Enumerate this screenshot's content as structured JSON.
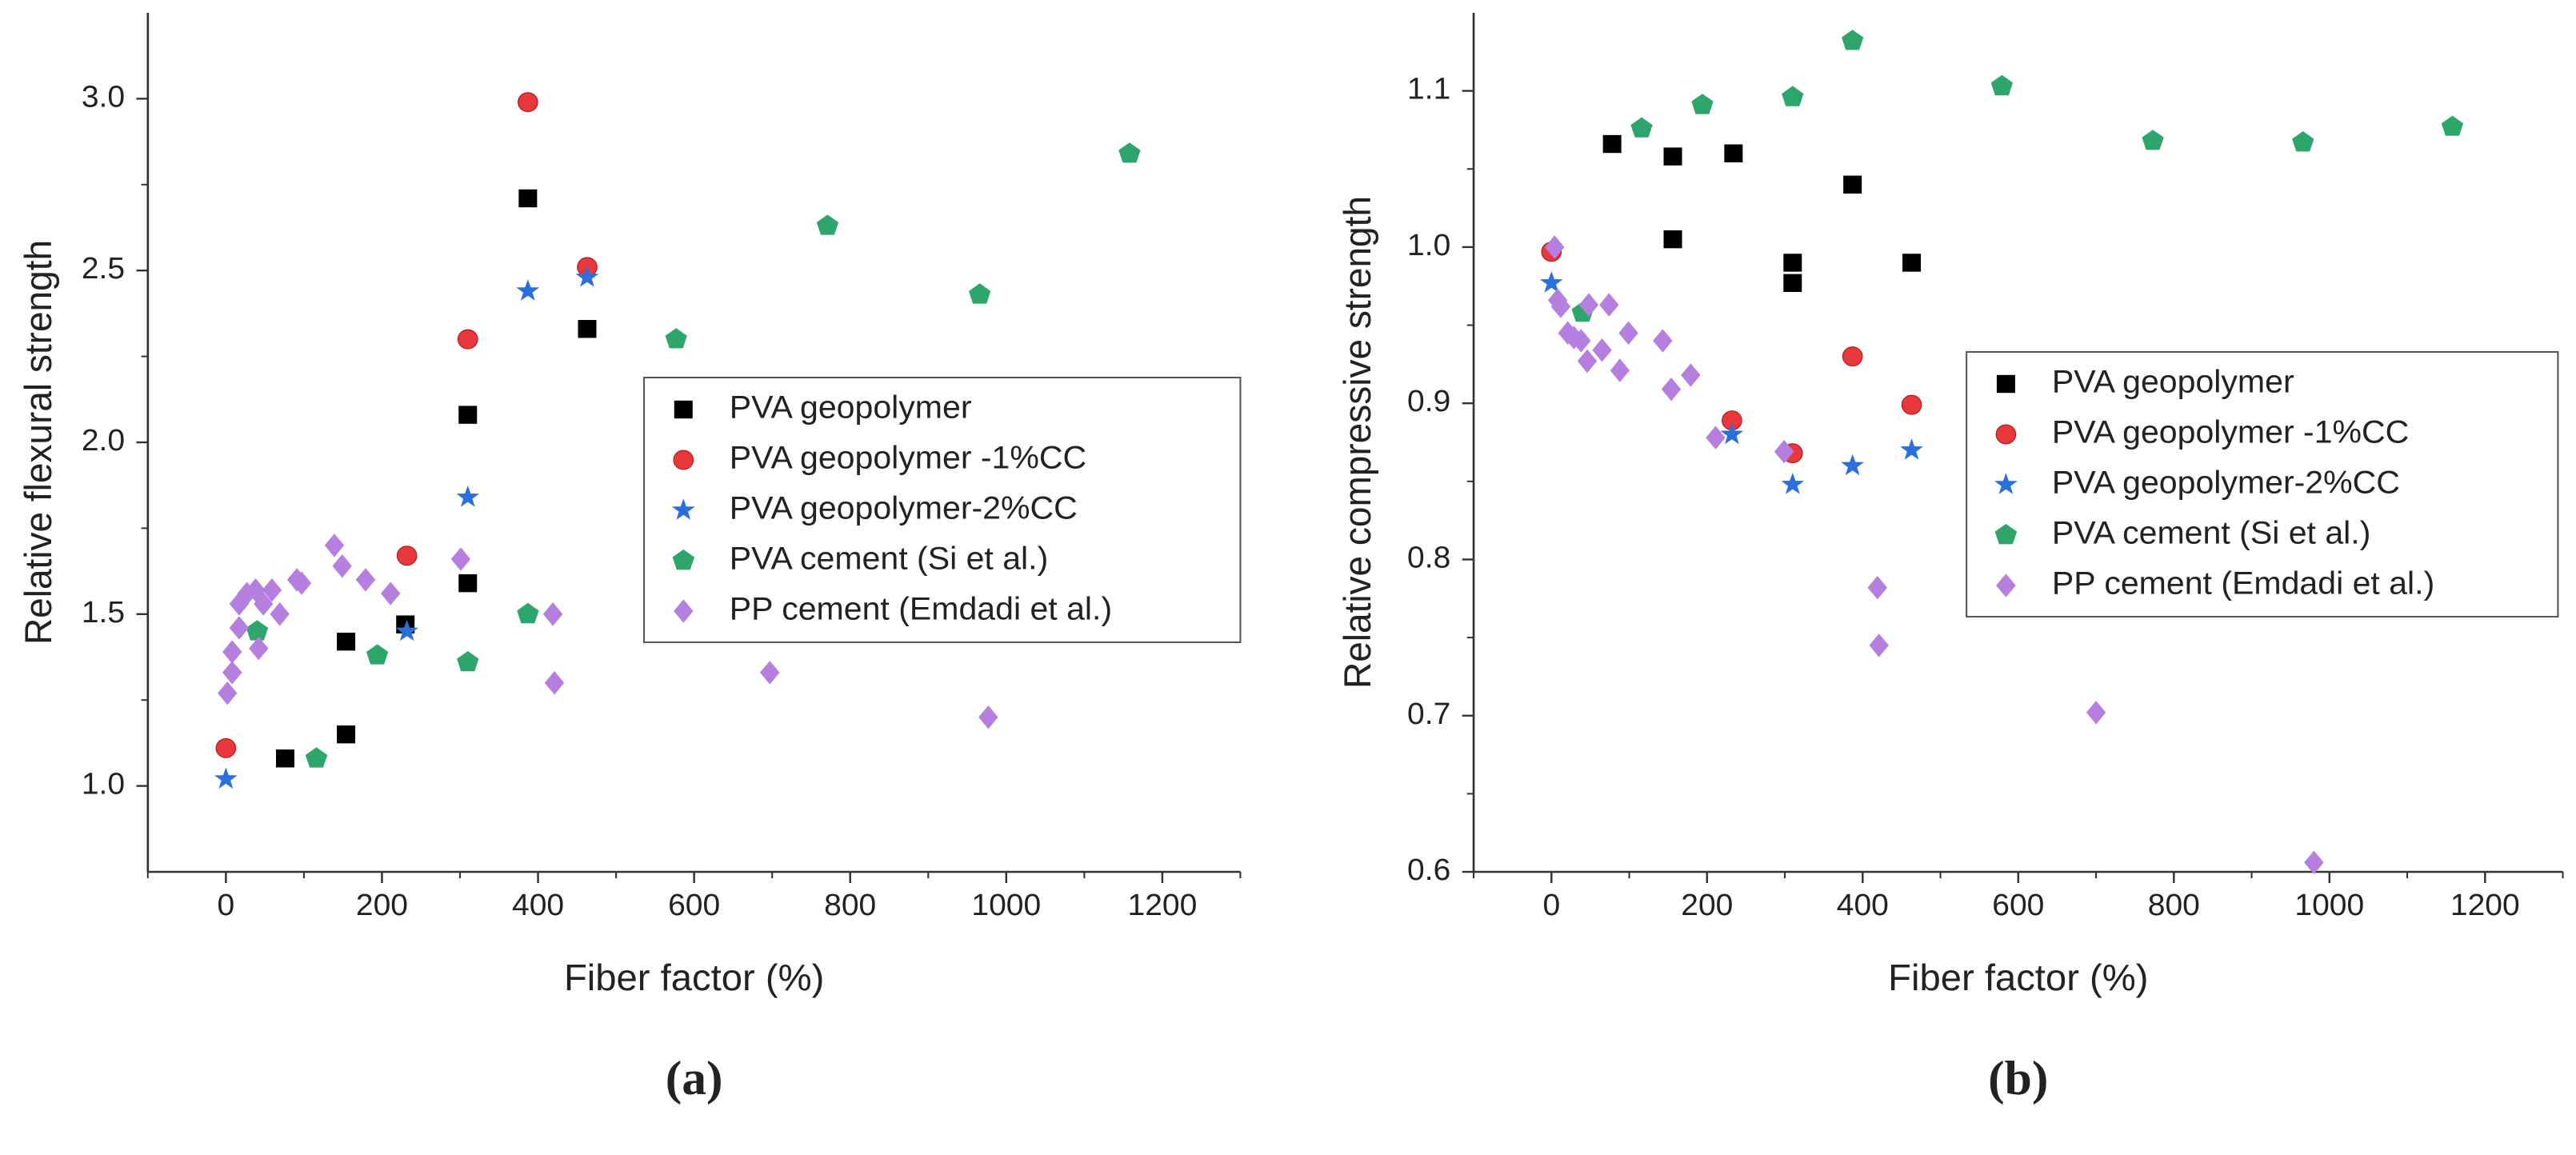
{
  "chart_data": [
    {
      "type": "scatter",
      "xlabel": "Fiber factor (%)",
      "ylabel": "Relative flexural strength",
      "label": "(a)",
      "xlim": [
        -100,
        1300
      ],
      "xticks": [
        0,
        200,
        400,
        600,
        800,
        1000,
        1200
      ],
      "ylim": [
        0.75,
        3.25
      ],
      "yticks": [
        {
          "value": 1,
          "label": "1.0"
        },
        1.5,
        {
          "value": 2,
          "label": "2.0"
        },
        2.5,
        {
          "value": 3,
          "label": "3.0"
        }
      ],
      "legend": "right",
      "series": [
        {
          "name": "PVA geopolymer",
          "color": "#000000",
          "marker": "square",
          "x": [
            76,
            154,
            154,
            230,
            310,
            310,
            387,
            463
          ],
          "values": [
            1.08,
            1.15,
            1.42,
            1.47,
            1.59,
            2.08,
            2.71,
            2.33
          ]
        },
        {
          "name": "PVA geopolymer -1%CC",
          "color": "#e8383b",
          "marker": "circle",
          "x": [
            0,
            232,
            310,
            387,
            463
          ],
          "values": [
            1.11,
            1.67,
            2.3,
            2.99,
            2.51
          ]
        },
        {
          "name": "PVA geopolymer-2%CC",
          "color": "#2b6fdc",
          "marker": "star",
          "x": [
            0,
            232,
            310,
            387,
            463
          ],
          "values": [
            1.02,
            1.45,
            1.84,
            2.44,
            2.48
          ]
        },
        {
          "name": "PVA cement (Si et al.)",
          "color": "#2ea66b",
          "marker": "pentagon",
          "x": [
            40,
            116,
            194,
            310,
            387,
            577,
            771,
            966,
            1158
          ],
          "values": [
            1.45,
            1.08,
            1.38,
            1.36,
            1.5,
            2.3,
            2.63,
            2.43,
            2.84
          ]
        },
        {
          "name": "PP cement (Emdadi et al.)",
          "color": "#b57fe0",
          "marker": "diamond",
          "x": [
            2,
            8,
            8,
            17,
            17,
            27,
            38,
            42,
            48,
            59,
            69,
            91,
            97,
            139,
            149,
            179,
            211,
            301,
            419,
            421,
            697,
            977
          ],
          "values": [
            1.27,
            1.33,
            1.39,
            1.46,
            1.53,
            1.56,
            1.57,
            1.4,
            1.53,
            1.57,
            1.5,
            1.6,
            1.59,
            1.7,
            1.64,
            1.6,
            1.56,
            1.66,
            1.5,
            1.3,
            1.33,
            1.2
          ]
        }
      ]
    },
    {
      "type": "scatter",
      "xlabel": "Fiber factor (%)",
      "ylabel": "Relative compressive strength",
      "label": "(b)",
      "xlim": [
        -100,
        1300
      ],
      "xticks": [
        0,
        200,
        400,
        600,
        800,
        1000,
        1200
      ],
      "ylim": [
        0.6,
        1.15
      ],
      "yticks": [
        0.6,
        0.7,
        0.8,
        0.9,
        {
          "value": 1,
          "label": "1.0"
        },
        1.1
      ],
      "legend": "right",
      "series": [
        {
          "name": "PVA geopolymer",
          "color": "#000000",
          "marker": "square",
          "x": [
            78,
            156,
            156,
            234,
            310,
            310,
            387,
            463
          ],
          "values": [
            1.066,
            1.058,
            1.005,
            1.06,
            0.99,
            0.977,
            1.04,
            0.99
          ]
        },
        {
          "name": "PVA geopolymer -1%CC",
          "color": "#e8383b",
          "marker": "circle",
          "x": [
            0,
            232,
            310,
            387,
            463
          ],
          "values": [
            0.997,
            0.889,
            0.868,
            0.93,
            0.899
          ]
        },
        {
          "name": "PVA geopolymer-2%CC",
          "color": "#2b6fdc",
          "marker": "star",
          "x": [
            0,
            232,
            310,
            387,
            463
          ],
          "values": [
            0.977,
            0.88,
            0.848,
            0.86,
            0.87
          ]
        },
        {
          "name": "PVA cement (Si et al.)",
          "color": "#2ea66b",
          "marker": "pentagon",
          "x": [
            40,
            116,
            194,
            310,
            387,
            579,
            773,
            966,
            1158
          ],
          "values": [
            0.958,
            1.076,
            1.091,
            1.096,
            1.132,
            1.103,
            1.068,
            1.067,
            1.077
          ]
        },
        {
          "name": "PP cement (Emdadi et al.)",
          "color": "#b57fe0",
          "marker": "diamond",
          "x": [
            4,
            8,
            12,
            21,
            29,
            38,
            46,
            48,
            65,
            74,
            99,
            88,
            143,
            154,
            179,
            211,
            299,
            419,
            421,
            700,
            980
          ],
          "values": [
            1.0,
            0.966,
            0.962,
            0.945,
            0.942,
            0.94,
            0.927,
            0.963,
            0.934,
            0.963,
            0.945,
            0.921,
            0.94,
            0.909,
            0.918,
            0.878,
            0.869,
            0.782,
            0.745,
            0.702,
            0.606
          ]
        }
      ]
    }
  ]
}
